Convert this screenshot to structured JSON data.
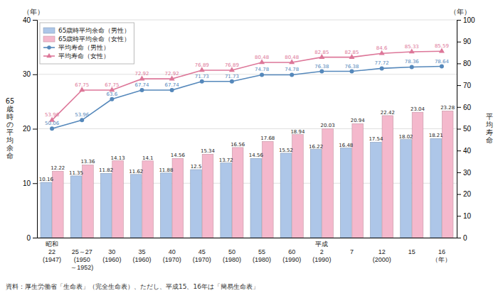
{
  "chart_data": {
    "type": "bar",
    "categories": [
      "昭和\n22\n(1947)",
      "\n25～27\n(1950\n～1952)",
      "\n30\n(1960)",
      "\n35\n(1960)",
      "\n40\n(1970)",
      "\n45\n(1970)",
      "\n50\n(1980)",
      "\n55\n(1980)",
      "\n60\n(1990)",
      "平成\n2\n(1990)",
      "\n7",
      "\n12\n(2000)",
      "\n15",
      "\n16\n（年）"
    ],
    "series": [
      {
        "name": "65歳時平均余命（男性）",
        "type": "bar",
        "axis": "y",
        "color": "#adc6e8",
        "values": [
          10.16,
          11.35,
          11.82,
          11.62,
          11.88,
          12.5,
          13.72,
          14.56,
          15.52,
          16.22,
          16.48,
          17.54,
          18.02,
          18.21
        ]
      },
      {
        "name": "65歳時平均余命（女性）",
        "type": "bar",
        "axis": "y",
        "color": "#f4b8cc",
        "values": [
          12.22,
          13.36,
          14.13,
          14.1,
          14.56,
          15.34,
          16.56,
          17.68,
          18.94,
          20.03,
          20.94,
          22.42,
          23.04,
          23.28
        ]
      },
      {
        "name": "平均寿命（男性）",
        "type": "line",
        "axis": "y2",
        "color": "#5588bb",
        "marker": "circle",
        "values": [
          50.06,
          53.96,
          63.6,
          67.74,
          67.74,
          71.73,
          71.73,
          74.78,
          74.78,
          76.38,
          76.38,
          77.72,
          78.36,
          78.64
        ]
      },
      {
        "name": "平均寿命（女性）",
        "type": "line",
        "axis": "y2",
        "color": "#dd7799",
        "marker": "triangle",
        "values": [
          53.96,
          67.75,
          67.75,
          72.92,
          72.92,
          76.89,
          76.89,
          80.48,
          80.48,
          82.85,
          82.85,
          84.6,
          85.33,
          85.59
        ]
      }
    ],
    "y_label": "65\n歳\n時\nの\n平\n均\n余\n命",
    "y2_label": "平\n均\n寿\n命",
    "ylim": [
      0,
      40
    ],
    "yticks": [
      0,
      10,
      20,
      30,
      40
    ],
    "y2lim": [
      0,
      100
    ],
    "y2ticks": [
      0,
      10,
      20,
      30,
      40,
      50,
      60,
      70,
      80,
      90,
      100
    ],
    "annotations": [
      "（年）",
      "（年）"
    ],
    "source": "資料：厚生労働省「生命表」（完全生命表）、ただし、平成15、16年は「簡易生命表」",
    "grid": true,
    "legend": "upper left",
    "data_labels": true
  }
}
